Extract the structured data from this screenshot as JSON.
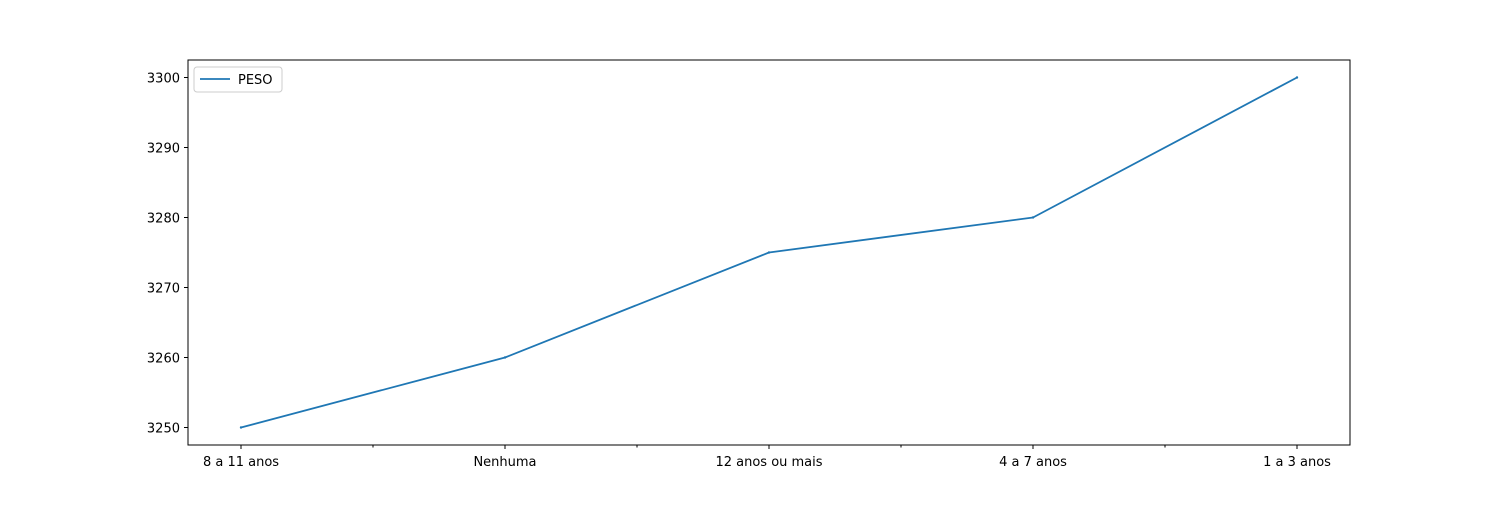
{
  "chart_data": {
    "type": "line",
    "categories": [
      "8 a 11 anos",
      "Nenhuma",
      "12 anos ou mais",
      "4 a 7 anos",
      "1 a 3 anos"
    ],
    "series": [
      {
        "name": "PESO",
        "values": [
          3250,
          3260,
          3275,
          3280,
          3300
        ],
        "color": "#1f77b4"
      }
    ],
    "yticks": [
      3250,
      3260,
      3270,
      3280,
      3290,
      3300
    ],
    "ylim": [
      3247.5,
      3302.5
    ],
    "legend_position": "top-left",
    "grid": false
  }
}
